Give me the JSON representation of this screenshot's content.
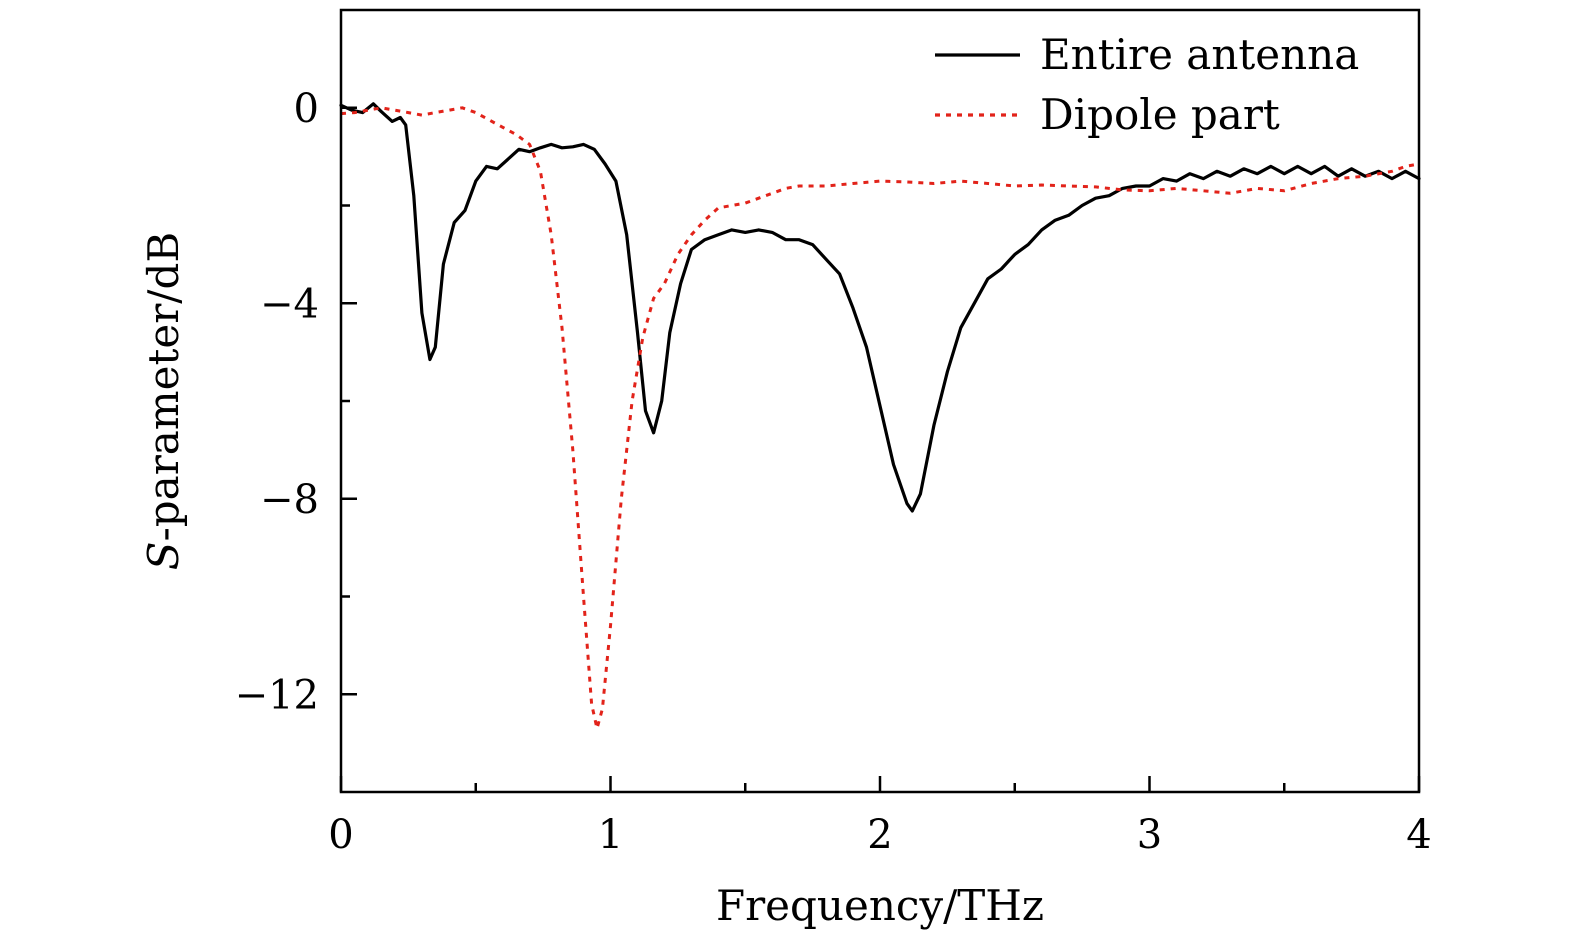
{
  "chart_data": {
    "type": "line",
    "title": "",
    "xlabel": "Frequency/THz",
    "ylabel": "S-parameter/dB",
    "ylabel_italic_prefix": "S",
    "ylabel_rest": "-parameter/dB",
    "xlim": [
      0,
      4
    ],
    "ylim": [
      -14,
      2
    ],
    "grid": false,
    "legend_position": "top-right",
    "x_ticks": [
      0,
      1,
      2,
      3,
      4
    ],
    "x_tick_labels": [
      "0",
      "1",
      "2",
      "3",
      "4"
    ],
    "x_minor_ticks": [
      0.5,
      1.5,
      2.5,
      3.5
    ],
    "y_ticks": [
      0,
      -4,
      -8,
      -12
    ],
    "y_tick_labels": [
      "0",
      "−4",
      "−8",
      "−12"
    ],
    "y_minor_ticks": [
      -2,
      -6,
      -10
    ],
    "series": [
      {
        "name": "Entire antenna",
        "color": "#000000",
        "style": "solid",
        "points": [
          [
            0,
            0.05
          ],
          [
            0.04,
            -0.05
          ],
          [
            0.08,
            -0.1
          ],
          [
            0.12,
            0.08
          ],
          [
            0.15,
            -0.08
          ],
          [
            0.19,
            -0.28
          ],
          [
            0.22,
            -0.2
          ],
          [
            0.24,
            -0.35
          ],
          [
            0.27,
            -1.8
          ],
          [
            0.3,
            -4.2
          ],
          [
            0.33,
            -5.15
          ],
          [
            0.35,
            -4.9
          ],
          [
            0.38,
            -3.2
          ],
          [
            0.42,
            -2.35
          ],
          [
            0.46,
            -2.1
          ],
          [
            0.5,
            -1.5
          ],
          [
            0.54,
            -1.2
          ],
          [
            0.58,
            -1.25
          ],
          [
            0.62,
            -1.05
          ],
          [
            0.66,
            -0.85
          ],
          [
            0.7,
            -0.9
          ],
          [
            0.74,
            -0.82
          ],
          [
            0.78,
            -0.75
          ],
          [
            0.82,
            -0.82
          ],
          [
            0.86,
            -0.8
          ],
          [
            0.9,
            -0.75
          ],
          [
            0.94,
            -0.85
          ],
          [
            0.98,
            -1.15
          ],
          [
            1.02,
            -1.5
          ],
          [
            1.06,
            -2.6
          ],
          [
            1.1,
            -4.6
          ],
          [
            1.13,
            -6.2
          ],
          [
            1.16,
            -6.65
          ],
          [
            1.19,
            -6.0
          ],
          [
            1.22,
            -4.6
          ],
          [
            1.26,
            -3.6
          ],
          [
            1.3,
            -2.9
          ],
          [
            1.35,
            -2.7
          ],
          [
            1.4,
            -2.6
          ],
          [
            1.45,
            -2.5
          ],
          [
            1.5,
            -2.55
          ],
          [
            1.55,
            -2.5
          ],
          [
            1.6,
            -2.55
          ],
          [
            1.65,
            -2.7
          ],
          [
            1.7,
            -2.7
          ],
          [
            1.75,
            -2.8
          ],
          [
            1.8,
            -3.1
          ],
          [
            1.85,
            -3.4
          ],
          [
            1.9,
            -4.1
          ],
          [
            1.95,
            -4.9
          ],
          [
            2.0,
            -6.1
          ],
          [
            2.05,
            -7.3
          ],
          [
            2.1,
            -8.1
          ],
          [
            2.12,
            -8.25
          ],
          [
            2.15,
            -7.9
          ],
          [
            2.2,
            -6.5
          ],
          [
            2.25,
            -5.4
          ],
          [
            2.3,
            -4.5
          ],
          [
            2.35,
            -4.0
          ],
          [
            2.4,
            -3.5
          ],
          [
            2.45,
            -3.3
          ],
          [
            2.5,
            -3.0
          ],
          [
            2.55,
            -2.8
          ],
          [
            2.6,
            -2.5
          ],
          [
            2.65,
            -2.3
          ],
          [
            2.7,
            -2.2
          ],
          [
            2.75,
            -2.0
          ],
          [
            2.8,
            -1.85
          ],
          [
            2.85,
            -1.8
          ],
          [
            2.9,
            -1.65
          ],
          [
            2.95,
            -1.6
          ],
          [
            3.0,
            -1.6
          ],
          [
            3.05,
            -1.45
          ],
          [
            3.1,
            -1.5
          ],
          [
            3.15,
            -1.35
          ],
          [
            3.2,
            -1.45
          ],
          [
            3.25,
            -1.3
          ],
          [
            3.3,
            -1.4
          ],
          [
            3.35,
            -1.25
          ],
          [
            3.4,
            -1.35
          ],
          [
            3.45,
            -1.2
          ],
          [
            3.5,
            -1.35
          ],
          [
            3.55,
            -1.2
          ],
          [
            3.6,
            -1.35
          ],
          [
            3.65,
            -1.2
          ],
          [
            3.7,
            -1.4
          ],
          [
            3.75,
            -1.25
          ],
          [
            3.8,
            -1.4
          ],
          [
            3.85,
            -1.3
          ],
          [
            3.9,
            -1.45
          ],
          [
            3.95,
            -1.3
          ],
          [
            4.0,
            -1.45
          ]
        ]
      },
      {
        "name": "Dipole part",
        "color": "#e2231a",
        "style": "dotted",
        "points": [
          [
            0,
            -0.12
          ],
          [
            0.05,
            -0.1
          ],
          [
            0.1,
            -0.05
          ],
          [
            0.15,
            0.0
          ],
          [
            0.2,
            -0.05
          ],
          [
            0.25,
            -0.1
          ],
          [
            0.3,
            -0.15
          ],
          [
            0.35,
            -0.1
          ],
          [
            0.4,
            -0.05
          ],
          [
            0.45,
            0.0
          ],
          [
            0.5,
            -0.1
          ],
          [
            0.55,
            -0.25
          ],
          [
            0.6,
            -0.4
          ],
          [
            0.65,
            -0.55
          ],
          [
            0.7,
            -0.75
          ],
          [
            0.74,
            -1.3
          ],
          [
            0.78,
            -2.6
          ],
          [
            0.82,
            -4.5
          ],
          [
            0.86,
            -7.0
          ],
          [
            0.9,
            -10.0
          ],
          [
            0.93,
            -12.2
          ],
          [
            0.95,
            -12.7
          ],
          [
            0.97,
            -12.3
          ],
          [
            1.0,
            -10.6
          ],
          [
            1.04,
            -8.0
          ],
          [
            1.08,
            -6.0
          ],
          [
            1.12,
            -4.7
          ],
          [
            1.16,
            -3.9
          ],
          [
            1.2,
            -3.6
          ],
          [
            1.25,
            -3.0
          ],
          [
            1.3,
            -2.6
          ],
          [
            1.35,
            -2.3
          ],
          [
            1.4,
            -2.05
          ],
          [
            1.45,
            -2.0
          ],
          [
            1.5,
            -1.95
          ],
          [
            1.55,
            -1.85
          ],
          [
            1.6,
            -1.75
          ],
          [
            1.65,
            -1.65
          ],
          [
            1.7,
            -1.6
          ],
          [
            1.8,
            -1.6
          ],
          [
            1.9,
            -1.55
          ],
          [
            2.0,
            -1.5
          ],
          [
            2.1,
            -1.52
          ],
          [
            2.2,
            -1.55
          ],
          [
            2.3,
            -1.5
          ],
          [
            2.4,
            -1.55
          ],
          [
            2.5,
            -1.6
          ],
          [
            2.6,
            -1.58
          ],
          [
            2.7,
            -1.6
          ],
          [
            2.8,
            -1.62
          ],
          [
            2.9,
            -1.68
          ],
          [
            3.0,
            -1.7
          ],
          [
            3.1,
            -1.65
          ],
          [
            3.2,
            -1.7
          ],
          [
            3.3,
            -1.75
          ],
          [
            3.4,
            -1.65
          ],
          [
            3.5,
            -1.7
          ],
          [
            3.6,
            -1.55
          ],
          [
            3.7,
            -1.45
          ],
          [
            3.8,
            -1.4
          ],
          [
            3.9,
            -1.3
          ],
          [
            3.95,
            -1.2
          ],
          [
            4.0,
            -1.15
          ]
        ]
      }
    ]
  }
}
